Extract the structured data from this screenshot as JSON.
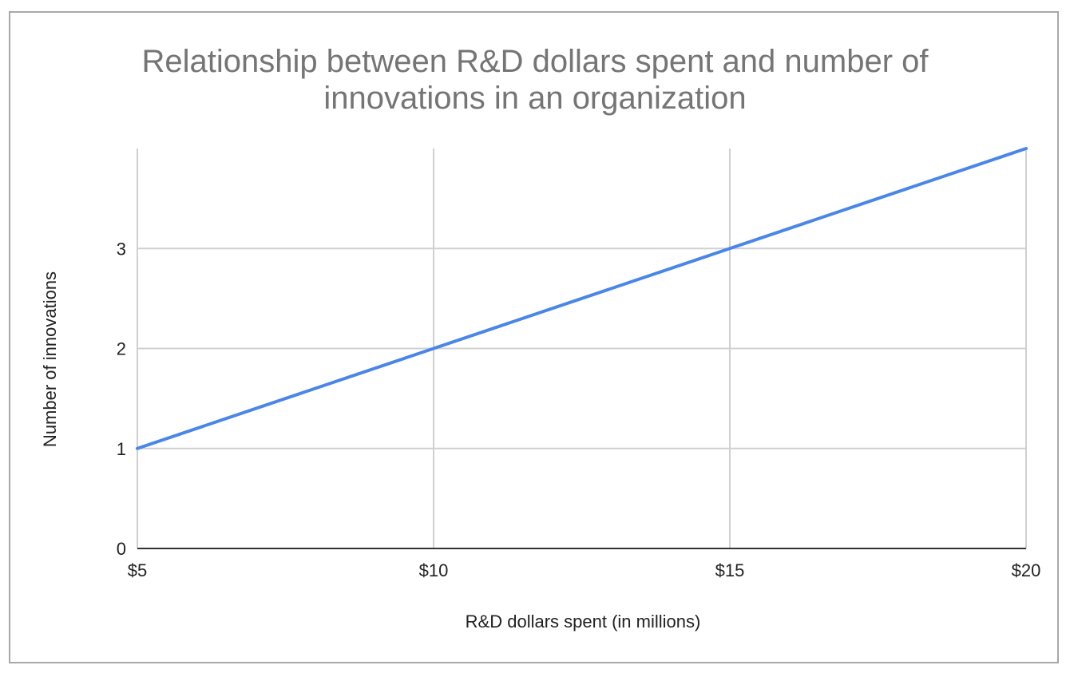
{
  "chart_data": {
    "type": "line",
    "title_lines": [
      "Relationship between R&D dollars spent and number of",
      "innovations in an organization"
    ],
    "xlabel": "R&D dollars spent (in millions)",
    "ylabel": "Number of innovations",
    "x": [
      5,
      10,
      15,
      20
    ],
    "x_tick_labels": [
      "$5",
      "$10",
      "$15",
      "$20"
    ],
    "y_ticks": [
      0,
      1,
      2,
      3
    ],
    "y_tick_labels": [
      "0",
      "1",
      "2",
      "3"
    ],
    "xlim": [
      5,
      20
    ],
    "ylim": [
      0,
      4
    ],
    "grid": true,
    "series": [
      {
        "values": [
          1,
          2,
          3,
          4
        ],
        "color": "#4a86e8"
      }
    ]
  }
}
